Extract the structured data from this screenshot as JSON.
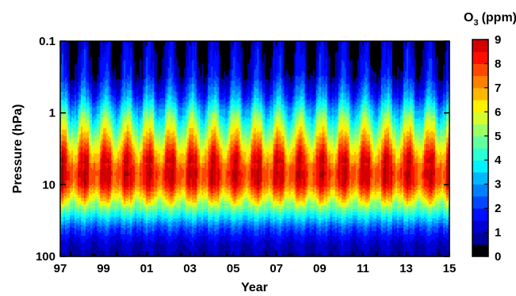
{
  "chart_data": {
    "type": "heatmap",
    "xlabel": "Year",
    "ylabel": "Pressure (hPa)",
    "colorbar_label_main": "O",
    "colorbar_label_sub": "3",
    "colorbar_label_unit": "(ppm)",
    "x_ticks": [
      "97",
      "99",
      "01",
      "03",
      "05",
      "07",
      "09",
      "11",
      "13",
      "15"
    ],
    "x_range": [
      1997,
      2015
    ],
    "y_scale": "log",
    "y_ticks": [
      "0.1",
      "1",
      "10",
      "100"
    ],
    "y_range": [
      0.1,
      100
    ],
    "y_reversed": true,
    "colorbar_ticks": [
      "0",
      "1",
      "2",
      "3",
      "4",
      "5",
      "6",
      "7",
      "8",
      "9"
    ],
    "colorbar_range": [
      0,
      9
    ],
    "colormap": "jet",
    "grid": false,
    "profile_approx": {
      "pressure_hPa": [
        0.1,
        0.3,
        0.6,
        1,
        2,
        4,
        7,
        10,
        15,
        25,
        40,
        60,
        100
      ],
      "ozone_ppm": [
        0.6,
        1.2,
        2.5,
        4.0,
        5.8,
        7.6,
        8.3,
        8.0,
        6.5,
        4.2,
        2.3,
        1.3,
        0.7
      ]
    },
    "seasonal_cycle": "annual oscillation with peaks near 2-10 hPa each year"
  }
}
